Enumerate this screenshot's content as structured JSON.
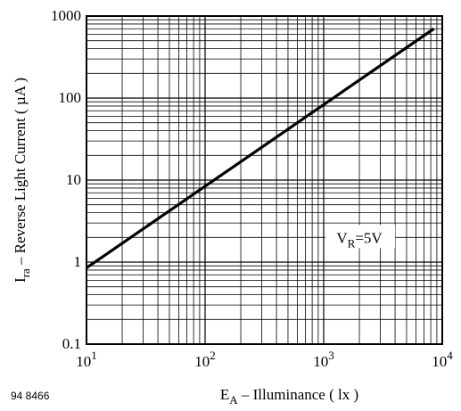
{
  "figure_id": "94 8466",
  "chart_data": {
    "type": "line",
    "title": "",
    "xlabel": {
      "main": "E",
      "sub": "A",
      "rest": " – Illuminance ( lx )"
    },
    "ylabel": {
      "main": "I",
      "sub": "ra",
      "rest": " – Reverse Light Current ( µA )"
    },
    "x_scale": "log",
    "y_scale": "log",
    "xlim": [
      10,
      10000
    ],
    "ylim": [
      0.1,
      1000
    ],
    "grid": true,
    "x_ticks": [
      {
        "value": 10,
        "base": "10",
        "exp": "1"
      },
      {
        "value": 100,
        "base": "10",
        "exp": "2"
      },
      {
        "value": 1000,
        "base": "10",
        "exp": "3"
      },
      {
        "value": 10000,
        "base": "10",
        "exp": "4"
      }
    ],
    "y_ticks": [
      {
        "value": 0.1,
        "label": "0.1"
      },
      {
        "value": 1,
        "label": "1"
      },
      {
        "value": 10,
        "label": "10"
      },
      {
        "value": 100,
        "label": "100"
      },
      {
        "value": 1000,
        "label": "1000"
      }
    ],
    "series": [
      {
        "x": [
          10,
          8500
        ],
        "y": [
          0.85,
          700
        ]
      }
    ],
    "annotations": [
      {
        "main": "V",
        "sub": "R",
        "rest": "=5V",
        "x": 2000,
        "y": 2
      }
    ]
  }
}
